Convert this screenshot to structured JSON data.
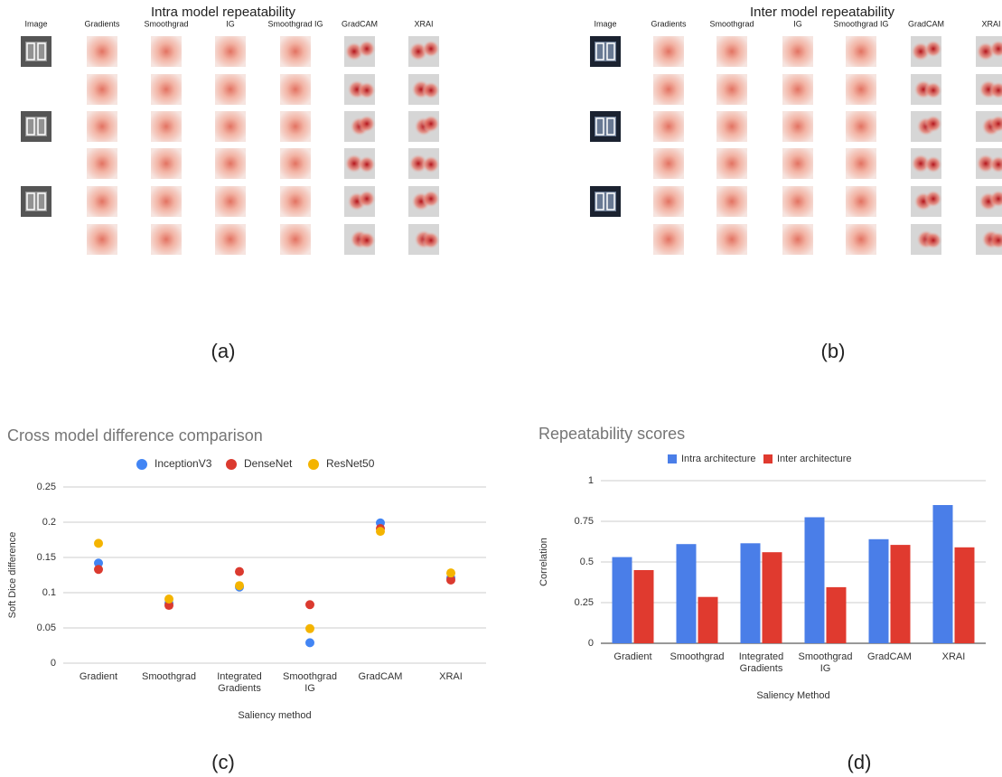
{
  "grids": [
    {
      "title": "Intra model repeatability",
      "columns": [
        "Image",
        "Gradients",
        "Smoothgrad",
        "IG",
        "Smoothgrad IG",
        "GradCAM",
        "XRAI"
      ],
      "label": "(a)"
    },
    {
      "title": "Inter model repeatability",
      "columns": [
        "Image",
        "Gradients",
        "Smoothgrad",
        "IG",
        "Smoothgrad IG",
        "GradCAM",
        "XRAI"
      ],
      "label": "(b)"
    }
  ],
  "chart_data": [
    {
      "type": "scatter",
      "title": "Cross model difference comparison",
      "label": "(c)",
      "categories": [
        "Gradient",
        "Smoothgrad",
        "Integrated Gradients",
        "Smoothgrad IG",
        "GradCAM",
        "XRAI"
      ],
      "series": [
        {
          "name": "InceptionV3",
          "color": "#4285f4",
          "values": [
            0.142,
            0.085,
            0.108,
            0.029,
            0.199,
            0.121
          ]
        },
        {
          "name": "DenseNet",
          "color": "#db3a2f",
          "values": [
            0.133,
            0.082,
            0.13,
            0.083,
            0.191,
            0.118
          ]
        },
        {
          "name": "ResNet50",
          "color": "#f4b400",
          "values": [
            0.17,
            0.091,
            0.11,
            0.049,
            0.187,
            0.128
          ]
        }
      ],
      "ylim": [
        0,
        0.25
      ],
      "yticks": [
        0,
        0.05,
        0.1,
        0.15,
        0.2,
        0.25
      ],
      "ylabel": "Soft Dice difference",
      "xlabel": "Saliency method",
      "grid": true,
      "legend": "top"
    },
    {
      "type": "bar",
      "title": "Repeatability scores",
      "label": "(d)",
      "categories": [
        "Gradient",
        "Smoothgrad",
        "Integrated Gradients",
        "Smoothgrad IG",
        "GradCAM",
        "XRAI"
      ],
      "series": [
        {
          "name": "Intra architecture",
          "color": "#4a7ee8",
          "values": [
            0.53,
            0.61,
            0.615,
            0.775,
            0.64,
            0.85
          ]
        },
        {
          "name": "Inter architecture",
          "color": "#e03a2f",
          "values": [
            0.45,
            0.285,
            0.56,
            0.345,
            0.605,
            0.59
          ]
        }
      ],
      "ylim": [
        0,
        1
      ],
      "yticks": [
        0,
        0.25,
        0.5,
        0.75,
        1
      ],
      "ylabel": "Correlation",
      "xlabel": "Saliency Method",
      "grid": true,
      "legend": "top"
    }
  ]
}
